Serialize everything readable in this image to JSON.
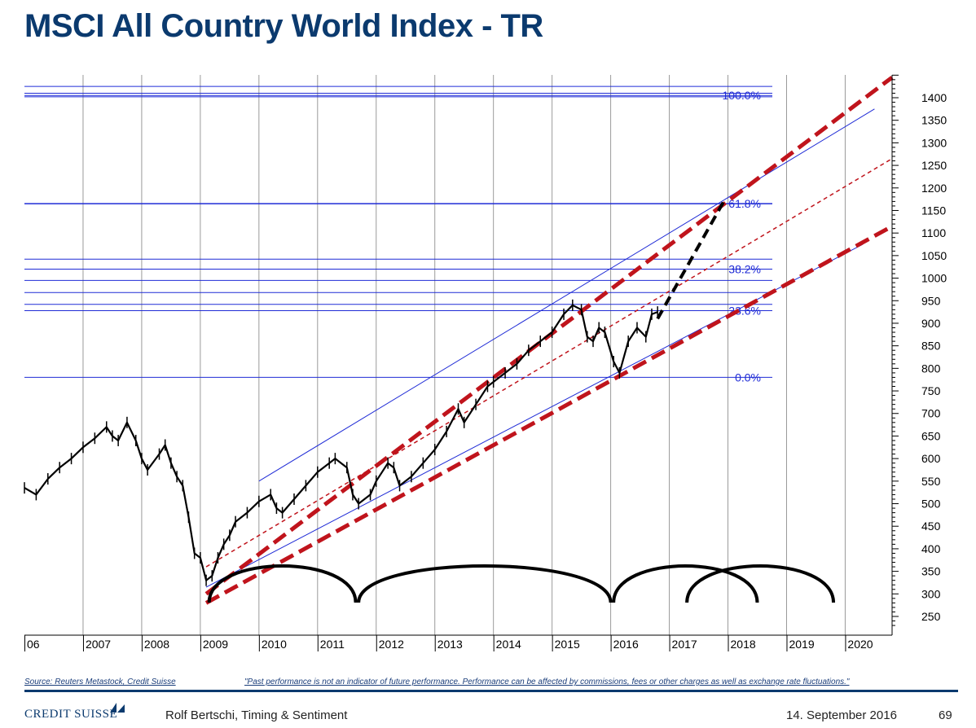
{
  "header": {
    "title": "MSCI All Country World Index - TR"
  },
  "chart_data": {
    "type": "line",
    "title": "MSCI All Country World Index - TR",
    "ylim": [
      230,
      1460
    ],
    "y_ticks": [
      250,
      300,
      350,
      400,
      450,
      500,
      550,
      600,
      650,
      700,
      750,
      800,
      850,
      900,
      950,
      1000,
      1050,
      1100,
      1150,
      1200,
      1250,
      1300,
      1350,
      1400
    ],
    "x_tick_labels": [
      "06",
      "2007",
      "2008",
      "2009",
      "2010",
      "2011",
      "2012",
      "2013",
      "2014",
      "2015",
      "2016",
      "2017",
      "2018",
      "2019",
      "2020"
    ],
    "xlim": [
      2006.0,
      2020.8
    ],
    "grid": true,
    "series": [
      {
        "values_note_omitted": true,
        "points": [
          [
            2006.0,
            535
          ],
          [
            2006.2,
            520
          ],
          [
            2006.4,
            555
          ],
          [
            2006.6,
            580
          ],
          [
            2006.8,
            600
          ],
          [
            2007.0,
            625
          ],
          [
            2007.2,
            645
          ],
          [
            2007.4,
            670
          ],
          [
            2007.5,
            650
          ],
          [
            2007.6,
            640
          ],
          [
            2007.75,
            680
          ],
          [
            2007.9,
            640
          ],
          [
            2008.0,
            600
          ],
          [
            2008.1,
            575
          ],
          [
            2008.3,
            610
          ],
          [
            2008.4,
            630
          ],
          [
            2008.5,
            590
          ],
          [
            2008.6,
            560
          ],
          [
            2008.7,
            540
          ],
          [
            2008.8,
            470
          ],
          [
            2008.9,
            390
          ],
          [
            2009.0,
            380
          ],
          [
            2009.1,
            330
          ],
          [
            2009.2,
            340
          ],
          [
            2009.3,
            380
          ],
          [
            2009.4,
            410
          ],
          [
            2009.5,
            430
          ],
          [
            2009.6,
            460
          ],
          [
            2009.8,
            480
          ],
          [
            2010.0,
            505
          ],
          [
            2010.2,
            520
          ],
          [
            2010.3,
            490
          ],
          [
            2010.4,
            480
          ],
          [
            2010.6,
            510
          ],
          [
            2010.8,
            540
          ],
          [
            2011.0,
            570
          ],
          [
            2011.2,
            590
          ],
          [
            2011.3,
            600
          ],
          [
            2011.5,
            580
          ],
          [
            2011.6,
            520
          ],
          [
            2011.7,
            500
          ],
          [
            2011.9,
            520
          ],
          [
            2012.0,
            550
          ],
          [
            2012.2,
            590
          ],
          [
            2012.3,
            580
          ],
          [
            2012.4,
            540
          ],
          [
            2012.6,
            560
          ],
          [
            2012.8,
            590
          ],
          [
            2013.0,
            620
          ],
          [
            2013.2,
            660
          ],
          [
            2013.4,
            710
          ],
          [
            2013.5,
            680
          ],
          [
            2013.7,
            720
          ],
          [
            2013.9,
            760
          ],
          [
            2014.0,
            770
          ],
          [
            2014.2,
            790
          ],
          [
            2014.4,
            810
          ],
          [
            2014.6,
            840
          ],
          [
            2014.8,
            860
          ],
          [
            2015.0,
            880
          ],
          [
            2015.2,
            920
          ],
          [
            2015.35,
            940
          ],
          [
            2015.5,
            930
          ],
          [
            2015.6,
            870
          ],
          [
            2015.7,
            860
          ],
          [
            2015.8,
            890
          ],
          [
            2015.9,
            880
          ],
          [
            2016.05,
            815
          ],
          [
            2016.15,
            790
          ],
          [
            2016.3,
            860
          ],
          [
            2016.45,
            890
          ],
          [
            2016.6,
            870
          ],
          [
            2016.7,
            920
          ],
          [
            2016.8,
            925
          ]
        ]
      }
    ],
    "fib_levels": [
      {
        "label": "100.0%",
        "value": 1405
      },
      {
        "label": "61.8%",
        "value": 1165
      },
      {
        "label": "38.2%",
        "value": 1020
      },
      {
        "label": "23.6%",
        "value": 928
      },
      {
        "label": "0.0%",
        "value": 780
      }
    ],
    "horizontal_lines": [
      1425,
      1410,
      1405,
      1402,
      1165,
      1042,
      1020,
      995,
      968,
      942,
      928,
      780
    ],
    "channel_upper_thick": [
      [
        2009.1,
        300
      ],
      [
        2020.8,
        1445
      ]
    ],
    "channel_lower_thick": [
      [
        2009.1,
        280
      ],
      [
        2020.8,
        1115
      ]
    ],
    "channel_mid_dashed": [
      [
        2009.1,
        360
      ],
      [
        2020.8,
        1265
      ]
    ],
    "channel_upper_thin": [
      [
        2010.0,
        550
      ],
      [
        2020.5,
        1375
      ]
    ],
    "channel_lower_thin": [
      [
        2009.1,
        315
      ],
      [
        2020.3,
        1075
      ]
    ],
    "projection_dashed": [
      [
        2016.8,
        910
      ],
      [
        2017.95,
        1175
      ]
    ],
    "cycle_arcs": [
      {
        "start": 2009.15,
        "end": 2011.65
      },
      {
        "start": 2011.7,
        "end": 2016.0
      },
      {
        "start": 2016.05,
        "end": 2018.5
      },
      {
        "start": 2017.3,
        "end": 2019.8
      }
    ],
    "colors": {
      "price": "#000000",
      "channel": "#c0141c",
      "grid_blue": "#1f2bd6",
      "projection": "#000000"
    }
  },
  "footer": {
    "source": "Source: Reuters Metastock, Credit Suisse",
    "disclaimer": "\"Past performance is not an indicator of future performance. Performance can be affected by commissions, fees or other charges as well as exchange rate fluctuations.\"",
    "logo": "CREDIT SUISSE",
    "author": "Rolf Bertschi, Timing & Sentiment",
    "date": "14. September 2016",
    "page": "69"
  }
}
